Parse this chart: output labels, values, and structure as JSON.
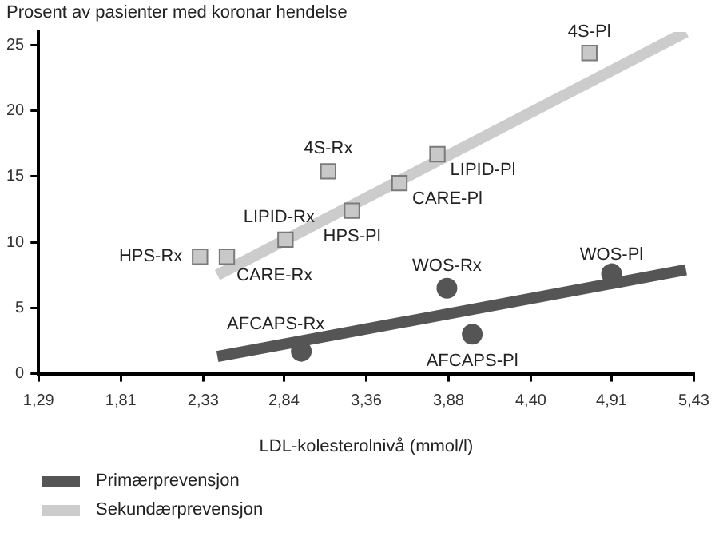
{
  "chart_data": {
    "type": "scatter",
    "ylabel": "Prosent av pasienter med koronar hendelse",
    "xlabel": "LDL-kolesterolnivå (mmol/l)",
    "xlim": [
      1.29,
      5.43
    ],
    "xticks": [
      {
        "value": 1.29,
        "label": "1,29"
      },
      {
        "value": 1.81,
        "label": "1,81"
      },
      {
        "value": 2.33,
        "label": "2,33"
      },
      {
        "value": 2.84,
        "label": "2,84"
      },
      {
        "value": 3.36,
        "label": "3,36"
      },
      {
        "value": 3.88,
        "label": "3,88"
      },
      {
        "value": 4.4,
        "label": "4,40"
      },
      {
        "value": 4.91,
        "label": "4,91"
      },
      {
        "value": 5.43,
        "label": "5,43"
      }
    ],
    "ylim": [
      0,
      26
    ],
    "yticks": [
      0,
      5,
      10,
      15,
      20,
      25
    ],
    "grid": false,
    "legend": "bottom left",
    "series": [
      {
        "name": "Primærprevensjon",
        "type": "line",
        "color": "#555555",
        "marker": "none",
        "x": [
          2.42,
          5.38
        ],
        "values": [
          1.3,
          7.9
        ]
      },
      {
        "name": "Sekundærprevensjon",
        "type": "line",
        "color": "#cccccc",
        "marker": "none",
        "x": [
          2.42,
          5.38
        ],
        "values": [
          7.5,
          26
        ]
      },
      {
        "type": "scatter",
        "color": "#c8c8c8",
        "marker": "square",
        "x": [
          4.77,
          3.81,
          3.57,
          3.27,
          3.12,
          2.85,
          2.48,
          2.31
        ],
        "values": [
          24.4,
          16.7,
          14.5,
          12.4,
          15.4,
          10.2,
          8.9,
          8.9
        ]
      },
      {
        "type": "scatter",
        "color": "#555555",
        "marker": "circle",
        "x": [
          4.91,
          3.87,
          4.03,
          2.95
        ],
        "values": [
          7.6,
          6.5,
          3.0,
          1.7
        ]
      }
    ],
    "annotations": [
      {
        "text": "4S-Pl",
        "x": 4.77,
        "y": 24.4
      },
      {
        "text": "LIPID-Pl",
        "x": 3.81,
        "y": 16.7
      },
      {
        "text": "CARE-Pl",
        "x": 3.57,
        "y": 14.5
      },
      {
        "text": "HPS-Pl",
        "x": 3.27,
        "y": 12.4
      },
      {
        "text": "4S-Rx",
        "x": 3.12,
        "y": 15.4
      },
      {
        "text": "LIPID-Rx",
        "x": 2.85,
        "y": 10.2
      },
      {
        "text": "CARE-Rx",
        "x": 2.48,
        "y": 8.9
      },
      {
        "text": "HPS-Rx",
        "x": 2.31,
        "y": 8.9
      },
      {
        "text": "WOS-Pl",
        "x": 4.91,
        "y": 7.6
      },
      {
        "text": "WOS-Rx",
        "x": 3.87,
        "y": 6.5
      },
      {
        "text": "AFCAPS-Pl",
        "x": 4.03,
        "y": 3.0
      },
      {
        "text": "AFCAPS-Rx",
        "x": 2.95,
        "y": 1.7
      }
    ]
  }
}
